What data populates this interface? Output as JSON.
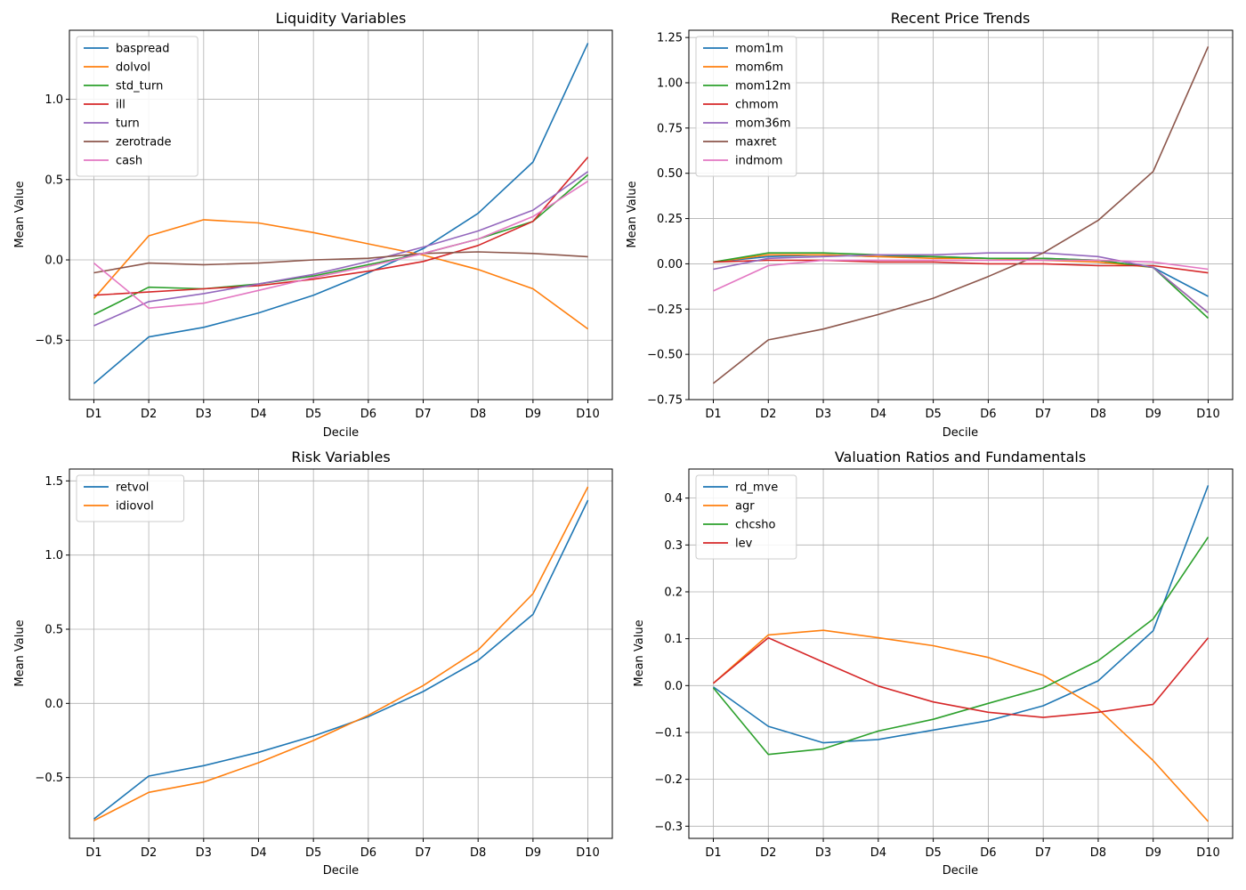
{
  "charts": [
    {
      "type": "line",
      "title": "Liquidity Variables",
      "xlabel": "Decile",
      "ylabel": "Mean Value",
      "categories": [
        "D1",
        "D2",
        "D3",
        "D4",
        "D5",
        "D6",
        "D7",
        "D8",
        "D9",
        "D10"
      ],
      "ylim": [
        -0.87,
        1.43
      ],
      "yticks": [
        -0.5,
        0.0,
        0.5,
        1.0
      ],
      "ytick_labels": [
        "−0.5",
        "0.0",
        "0.5",
        "1.0"
      ],
      "legend_loc": "upper-left",
      "series": [
        {
          "name": "baspread",
          "color": "#1f77b4",
          "values": [
            -0.77,
            -0.48,
            -0.42,
            -0.33,
            -0.22,
            -0.08,
            0.07,
            0.29,
            0.61,
            1.35
          ]
        },
        {
          "name": "dolvol",
          "color": "#ff7f0e",
          "values": [
            -0.24,
            0.15,
            0.25,
            0.23,
            0.17,
            0.1,
            0.03,
            -0.06,
            -0.18,
            -0.43
          ]
        },
        {
          "name": "std_turn",
          "color": "#2ca02c",
          "values": [
            -0.34,
            -0.17,
            -0.18,
            -0.15,
            -0.1,
            -0.03,
            0.04,
            0.13,
            0.24,
            0.53
          ]
        },
        {
          "name": "ill",
          "color": "#d62728",
          "values": [
            -0.22,
            -0.2,
            -0.18,
            -0.16,
            -0.12,
            -0.07,
            -0.01,
            0.09,
            0.24,
            0.64
          ]
        },
        {
          "name": "turn",
          "color": "#9467bd",
          "values": [
            -0.41,
            -0.26,
            -0.21,
            -0.15,
            -0.09,
            -0.01,
            0.08,
            0.18,
            0.31,
            0.55
          ]
        },
        {
          "name": "zerotrade",
          "color": "#8c564b",
          "values": [
            -0.08,
            -0.02,
            -0.03,
            -0.02,
            0.0,
            0.01,
            0.04,
            0.05,
            0.04,
            0.02
          ]
        },
        {
          "name": "cash",
          "color": "#e377c2",
          "values": [
            -0.02,
            -0.3,
            -0.27,
            -0.19,
            -0.11,
            -0.04,
            0.04,
            0.13,
            0.27,
            0.49
          ]
        }
      ]
    },
    {
      "type": "line",
      "title": "Recent Price Trends",
      "xlabel": "Decile",
      "ylabel": "Mean Value",
      "categories": [
        "D1",
        "D2",
        "D3",
        "D4",
        "D5",
        "D6",
        "D7",
        "D8",
        "D9",
        "D10"
      ],
      "ylim": [
        -0.75,
        1.29
      ],
      "yticks": [
        -0.75,
        -0.5,
        -0.25,
        0.0,
        0.25,
        0.5,
        0.75,
        1.0,
        1.25
      ],
      "ytick_labels": [
        "−0.75",
        "−0.50",
        "−0.25",
        "0.00",
        "0.25",
        "0.50",
        "0.75",
        "1.00",
        "1.25"
      ],
      "legend_loc": "upper-left",
      "series": [
        {
          "name": "mom1m",
          "color": "#1f77b4",
          "values": [
            0.01,
            0.04,
            0.05,
            0.04,
            0.04,
            0.03,
            0.03,
            0.02,
            -0.02,
            -0.18
          ]
        },
        {
          "name": "mom6m",
          "color": "#ff7f0e",
          "values": [
            0.01,
            0.05,
            0.05,
            0.04,
            0.03,
            0.03,
            0.02,
            0.01,
            -0.02,
            -0.27
          ]
        },
        {
          "name": "mom12m",
          "color": "#2ca02c",
          "values": [
            0.01,
            0.06,
            0.06,
            0.05,
            0.04,
            0.03,
            0.03,
            0.02,
            -0.02,
            -0.3
          ]
        },
        {
          "name": "chmom",
          "color": "#d62728",
          "values": [
            0.01,
            0.02,
            0.02,
            0.01,
            0.01,
            0.0,
            0.0,
            -0.01,
            -0.01,
            -0.05
          ]
        },
        {
          "name": "mom36m",
          "color": "#9467bd",
          "values": [
            -0.03,
            0.03,
            0.04,
            0.05,
            0.05,
            0.06,
            0.06,
            0.04,
            -0.02,
            -0.27
          ]
        },
        {
          "name": "maxret",
          "color": "#8c564b",
          "values": [
            -0.66,
            -0.42,
            -0.36,
            -0.28,
            -0.19,
            -0.07,
            0.06,
            0.24,
            0.51,
            1.2
          ]
        },
        {
          "name": "indmom",
          "color": "#e377c2",
          "values": [
            -0.15,
            -0.01,
            0.02,
            0.02,
            0.02,
            0.02,
            0.02,
            0.02,
            0.01,
            -0.03
          ]
        }
      ]
    },
    {
      "type": "line",
      "title": "Risk Variables",
      "xlabel": "Decile",
      "ylabel": "Mean Value",
      "categories": [
        "D1",
        "D2",
        "D3",
        "D4",
        "D5",
        "D6",
        "D7",
        "D8",
        "D9",
        "D10"
      ],
      "ylim": [
        -0.91,
        1.58
      ],
      "yticks": [
        -0.5,
        0.0,
        0.5,
        1.0,
        1.5
      ],
      "ytick_labels": [
        "−0.5",
        "0.0",
        "0.5",
        "1.0",
        "1.5"
      ],
      "legend_loc": "upper-left",
      "series": [
        {
          "name": "retvol",
          "color": "#1f77b4",
          "values": [
            -0.78,
            -0.49,
            -0.42,
            -0.33,
            -0.22,
            -0.09,
            0.08,
            0.29,
            0.6,
            1.37
          ]
        },
        {
          "name": "idiovol",
          "color": "#ff7f0e",
          "values": [
            -0.79,
            -0.6,
            -0.53,
            -0.4,
            -0.25,
            -0.08,
            0.12,
            0.36,
            0.74,
            1.46
          ]
        }
      ]
    },
    {
      "type": "line",
      "title": "Valuation Ratios and Fundamentals",
      "xlabel": "Decile",
      "ylabel": "Mean Value",
      "categories": [
        "D1",
        "D2",
        "D3",
        "D4",
        "D5",
        "D6",
        "D7",
        "D8",
        "D9",
        "D10"
      ],
      "ylim": [
        -0.326,
        0.462
      ],
      "yticks": [
        -0.3,
        -0.2,
        -0.1,
        0.0,
        0.1,
        0.2,
        0.3,
        0.4
      ],
      "ytick_labels": [
        "−0.3",
        "−0.2",
        "−0.1",
        "0.0",
        "0.1",
        "0.2",
        "0.3",
        "0.4"
      ],
      "legend_loc": "upper-left",
      "series": [
        {
          "name": "rd_mve",
          "color": "#1f77b4",
          "values": [
            -0.003,
            -0.087,
            -0.122,
            -0.115,
            -0.095,
            -0.075,
            -0.043,
            0.01,
            0.117,
            0.427
          ]
        },
        {
          "name": "agr",
          "color": "#ff7f0e",
          "values": [
            0.005,
            0.108,
            0.118,
            0.102,
            0.085,
            0.06,
            0.022,
            -0.05,
            -0.16,
            -0.29
          ]
        },
        {
          "name": "chcsho",
          "color": "#2ca02c",
          "values": [
            -0.005,
            -0.147,
            -0.135,
            -0.097,
            -0.072,
            -0.038,
            -0.005,
            0.053,
            0.142,
            0.317
          ]
        },
        {
          "name": "lev",
          "color": "#d62728",
          "values": [
            0.005,
            0.102,
            0.05,
            -0.001,
            -0.035,
            -0.057,
            -0.068,
            -0.057,
            -0.04,
            0.102
          ]
        }
      ]
    }
  ]
}
